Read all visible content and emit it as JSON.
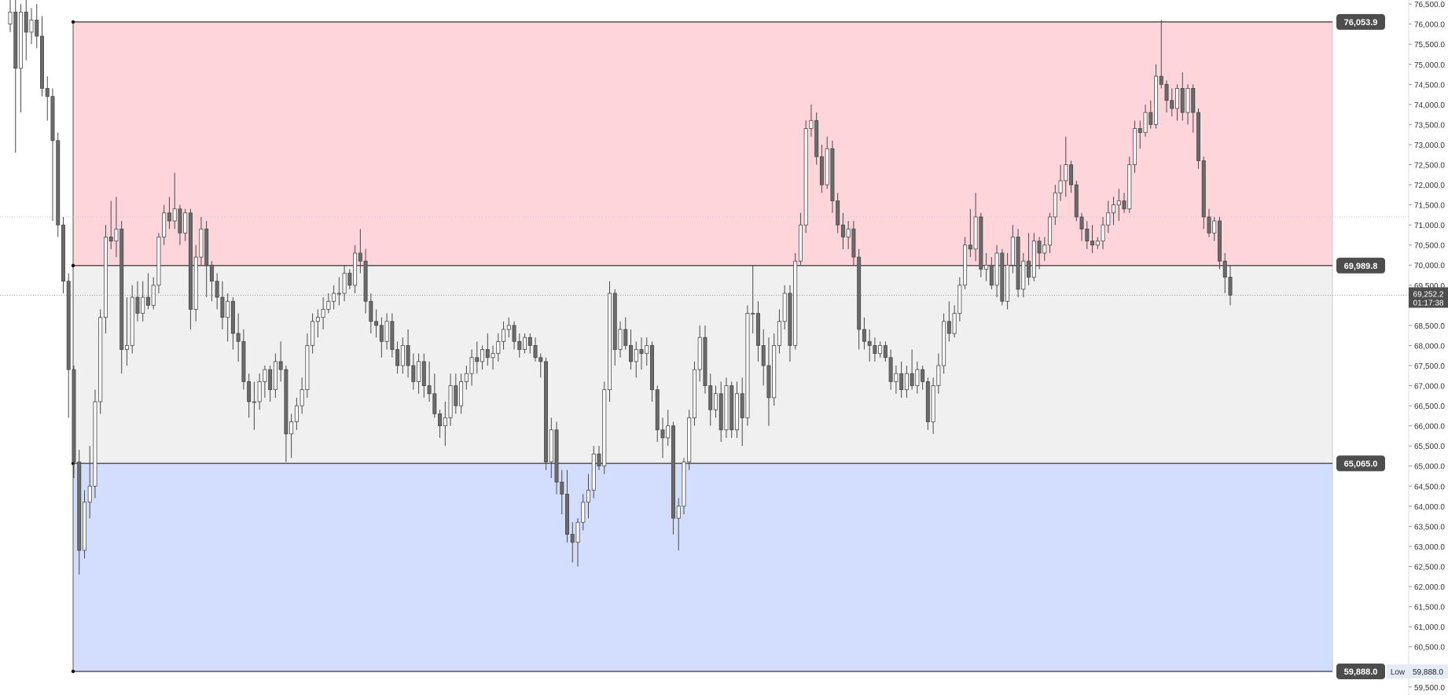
{
  "colors": {
    "zone_upper": "#fdd5db",
    "zone_middle": "#f0f0f0",
    "zone_lower": "#d3deff",
    "level_line": "#555555",
    "candle_up_fill": "#ffffff",
    "candle_down_fill": "#6b6b6b",
    "candle_stroke": "#4a4a4a",
    "tag_bg": "#4d4d4d",
    "tag_text": "#ffffff",
    "axis_text": "#333333",
    "dotted_line": "#9a9a9a"
  },
  "price_axis": {
    "tick_labels": [
      "76,500.0",
      "76,000.0",
      "75,500.0",
      "75,000.0",
      "74,500.0",
      "74,000.0",
      "73,500.0",
      "73,000.0",
      "72,500.0",
      "72,000.0",
      "71,500.0",
      "71,000.0",
      "70,500.0",
      "70,000.0",
      "69,500.0",
      "68,500.0",
      "68,000.0",
      "67,500.0",
      "67,000.0",
      "66,500.0",
      "66,000.0",
      "65,500.0",
      "65,000.0",
      "64,500.0",
      "64,000.0",
      "63,500.0",
      "63,000.0",
      "62,500.0",
      "62,000.0",
      "61,500.0",
      "61,000.0",
      "60,500.0",
      "60,000.0",
      "59,500.0"
    ],
    "current_price_label": "69,252.2",
    "countdown_label": "01:17:38",
    "low_label": "Low",
    "low_value_label": "59,888.0"
  },
  "chart_data": {
    "type": "candlestick",
    "ylim": [
      59300,
      76600
    ],
    "grid": false,
    "levels": [
      {
        "value": 76053.9,
        "label": "76,053.9"
      },
      {
        "value": 69989.8,
        "label": "69,989.8"
      },
      {
        "value": 65065.0,
        "label": "65,065.0"
      },
      {
        "value": 59888.0,
        "label": "59,888.0"
      }
    ],
    "current_price": 69252.2,
    "dotted_reference": 71200,
    "candles_ohlc": [
      [
        76000,
        76600,
        75800,
        76300
      ],
      [
        76300,
        76600,
        72800,
        74900
      ],
      [
        74900,
        76500,
        73800,
        76300
      ],
      [
        76300,
        76600,
        75100,
        75800
      ],
      [
        75800,
        76400,
        75500,
        76100
      ],
      [
        76100,
        76500,
        75400,
        75700
      ],
      [
        75700,
        76200,
        74200,
        74400
      ],
      [
        74400,
        74700,
        73600,
        74200
      ],
      [
        74200,
        74400,
        71100,
        73100
      ],
      [
        73100,
        73300,
        70700,
        71000
      ],
      [
        71000,
        71200,
        69300,
        69600
      ],
      [
        69600,
        69800,
        66200,
        67400
      ],
      [
        67400,
        67500,
        64700,
        65100
      ],
      [
        65100,
        65400,
        62300,
        62900
      ],
      [
        62900,
        64400,
        62700,
        64100
      ],
      [
        64100,
        65500,
        63700,
        64500
      ],
      [
        64500,
        66900,
        64200,
        66600
      ],
      [
        66600,
        68900,
        66300,
        68700
      ],
      [
        68700,
        71000,
        68300,
        70700
      ],
      [
        70700,
        71600,
        70400,
        70600
      ],
      [
        70600,
        71700,
        70200,
        70900
      ],
      [
        70900,
        71100,
        67300,
        67900
      ],
      [
        67900,
        69200,
        67500,
        68000
      ],
      [
        68000,
        69500,
        67800,
        69200
      ],
      [
        69200,
        69600,
        68600,
        68800
      ],
      [
        68800,
        69600,
        68600,
        69200
      ],
      [
        69200,
        69800,
        68900,
        69000
      ],
      [
        69000,
        69700,
        68900,
        69500
      ],
      [
        69500,
        70800,
        69300,
        70700
      ],
      [
        70700,
        71500,
        70500,
        71300
      ],
      [
        71300,
        71700,
        70900,
        71100
      ],
      [
        71100,
        72300,
        70900,
        71400
      ],
      [
        71400,
        71500,
        70500,
        70800
      ],
      [
        70800,
        71400,
        70600,
        71300
      ],
      [
        71300,
        71400,
        68400,
        68900
      ],
      [
        68900,
        70500,
        68600,
        70200
      ],
      [
        70200,
        71200,
        70000,
        70900
      ],
      [
        70900,
        71100,
        69200,
        70000
      ],
      [
        70000,
        70100,
        69100,
        69600
      ],
      [
        69600,
        69800,
        68900,
        69200
      ],
      [
        69200,
        69600,
        68400,
        68700
      ],
      [
        68700,
        69300,
        68100,
        69100
      ],
      [
        69100,
        69200,
        67900,
        68300
      ],
      [
        68300,
        68800,
        67600,
        68100
      ],
      [
        68100,
        68400,
        66900,
        67100
      ],
      [
        67100,
        67300,
        66200,
        66600
      ],
      [
        66600,
        67100,
        65900,
        66600
      ],
      [
        66600,
        67300,
        66400,
        67100
      ],
      [
        67100,
        67500,
        66700,
        67400
      ],
      [
        67400,
        67500,
        66600,
        66900
      ],
      [
        66900,
        67800,
        66700,
        67600
      ],
      [
        67600,
        68100,
        67100,
        67400
      ],
      [
        67400,
        67500,
        65100,
        65800
      ],
      [
        65800,
        66300,
        65200,
        66100
      ],
      [
        66100,
        66700,
        65900,
        66500
      ],
      [
        66500,
        67200,
        66300,
        66900
      ],
      [
        66900,
        68300,
        66700,
        68000
      ],
      [
        68000,
        68800,
        67800,
        68600
      ],
      [
        68600,
        68900,
        68200,
        68700
      ],
      [
        68700,
        69200,
        68400,
        68900
      ],
      [
        68900,
        69300,
        68800,
        69100
      ],
      [
        69100,
        69500,
        68900,
        69300
      ],
      [
        69300,
        69700,
        69000,
        69300
      ],
      [
        69300,
        70000,
        69100,
        69800
      ],
      [
        69800,
        69900,
        69400,
        69500
      ],
      [
        69500,
        70500,
        69300,
        70300
      ],
      [
        70300,
        70900,
        69800,
        70100
      ],
      [
        70100,
        70400,
        68800,
        69100
      ],
      [
        69100,
        69300,
        68300,
        68600
      ],
      [
        68600,
        68900,
        68200,
        68500
      ],
      [
        68500,
        68700,
        67700,
        68100
      ],
      [
        68100,
        68800,
        67900,
        68600
      ],
      [
        68600,
        68800,
        67700,
        67900
      ],
      [
        67900,
        68100,
        67300,
        67500
      ],
      [
        67500,
        68200,
        67300,
        68000
      ],
      [
        68000,
        68400,
        67200,
        67500
      ],
      [
        67500,
        67800,
        66900,
        67100
      ],
      [
        67100,
        67800,
        66800,
        67600
      ],
      [
        67600,
        67800,
        66700,
        67000
      ],
      [
        67000,
        67600,
        66600,
        66800
      ],
      [
        66800,
        67300,
        66200,
        66300
      ],
      [
        66300,
        66400,
        65700,
        66000
      ],
      [
        66000,
        66600,
        65500,
        66200
      ],
      [
        66200,
        67300,
        66000,
        67000
      ],
      [
        67000,
        67300,
        66300,
        66500
      ],
      [
        66500,
        67300,
        66300,
        67100
      ],
      [
        67100,
        67500,
        66900,
        67300
      ],
      [
        67300,
        67900,
        67000,
        67700
      ],
      [
        67700,
        68100,
        67300,
        67600
      ],
      [
        67600,
        68000,
        67400,
        67900
      ],
      [
        67900,
        68300,
        67500,
        67700
      ],
      [
        67700,
        68000,
        67400,
        67800
      ],
      [
        67800,
        68300,
        67600,
        68100
      ],
      [
        68100,
        68600,
        67900,
        68400
      ],
      [
        68400,
        68700,
        68200,
        68500
      ],
      [
        68500,
        68600,
        67900,
        68100
      ],
      [
        68100,
        68300,
        67700,
        67900
      ],
      [
        67900,
        68300,
        67800,
        68200
      ],
      [
        68200,
        68300,
        67800,
        68000
      ],
      [
        68000,
        68200,
        67600,
        67700
      ],
      [
        67700,
        67800,
        67200,
        67600
      ],
      [
        67600,
        67700,
        64900,
        65100
      ],
      [
        65100,
        66200,
        64700,
        65900
      ],
      [
        65900,
        66100,
        64300,
        64600
      ],
      [
        64600,
        64900,
        63800,
        64300
      ],
      [
        64300,
        64900,
        63100,
        63300
      ],
      [
        63300,
        63600,
        62600,
        63100
      ],
      [
        63100,
        63700,
        62500,
        63600
      ],
      [
        63600,
        64300,
        63400,
        64100
      ],
      [
        64100,
        64800,
        63700,
        64400
      ],
      [
        64400,
        65500,
        64200,
        65300
      ],
      [
        65300,
        65500,
        64900,
        65000
      ],
      [
        65000,
        67100,
        64800,
        66900
      ],
      [
        66900,
        69600,
        66600,
        69300
      ],
      [
        69300,
        69400,
        67500,
        67900
      ],
      [
        67900,
        68600,
        67700,
        68400
      ],
      [
        68400,
        68700,
        67900,
        68000
      ],
      [
        68000,
        68400,
        67400,
        67600
      ],
      [
        67600,
        68100,
        67200,
        67900
      ],
      [
        67900,
        68200,
        67400,
        67800
      ],
      [
        67800,
        68200,
        67500,
        68000
      ],
      [
        68000,
        68100,
        66600,
        66900
      ],
      [
        66900,
        67000,
        65600,
        65900
      ],
      [
        65900,
        66200,
        65200,
        65700
      ],
      [
        65700,
        66400,
        65500,
        66000
      ],
      [
        66000,
        66100,
        63300,
        63700
      ],
      [
        63700,
        64200,
        62900,
        64000
      ],
      [
        64000,
        65200,
        63800,
        65100
      ],
      [
        65100,
        66400,
        64900,
        66200
      ],
      [
        66200,
        67600,
        66000,
        67400
      ],
      [
        67400,
        68500,
        67100,
        68200
      ],
      [
        68200,
        68500,
        66800,
        67000
      ],
      [
        67000,
        67300,
        66000,
        66400
      ],
      [
        66400,
        67000,
        66200,
        66800
      ],
      [
        66800,
        67100,
        65600,
        65900
      ],
      [
        65900,
        67200,
        65700,
        67000
      ],
      [
        67000,
        67100,
        65700,
        65900
      ],
      [
        65900,
        67100,
        65700,
        66800
      ],
      [
        66800,
        67200,
        65500,
        66200
      ],
      [
        66200,
        69000,
        66000,
        68800
      ],
      [
        68800,
        70000,
        68300,
        68800
      ],
      [
        68800,
        69100,
        67600,
        68000
      ],
      [
        68000,
        68400,
        67000,
        67500
      ],
      [
        67500,
        68200,
        66000,
        66700
      ],
      [
        66700,
        68300,
        66500,
        68000
      ],
      [
        68000,
        68900,
        67800,
        68600
      ],
      [
        68600,
        69500,
        68400,
        69300
      ],
      [
        69300,
        69500,
        67600,
        68000
      ],
      [
        68000,
        70300,
        67900,
        70100
      ],
      [
        70100,
        71300,
        70000,
        71000
      ],
      [
        71000,
        73600,
        70800,
        73400
      ],
      [
        73400,
        74000,
        73200,
        73600
      ],
      [
        73600,
        73800,
        72500,
        72700
      ],
      [
        72700,
        73000,
        71800,
        72000
      ],
      [
        72000,
        73200,
        71900,
        72900
      ],
      [
        72900,
        73100,
        71300,
        71600
      ],
      [
        71600,
        71800,
        70800,
        71000
      ],
      [
        71000,
        71300,
        70400,
        70700
      ],
      [
        70700,
        71100,
        70400,
        70900
      ],
      [
        70900,
        71100,
        70000,
        70200
      ],
      [
        70200,
        70400,
        67900,
        68400
      ],
      [
        68400,
        68700,
        67900,
        68100
      ],
      [
        68100,
        68400,
        67600,
        68000
      ],
      [
        68000,
        68200,
        67600,
        67800
      ],
      [
        67800,
        68100,
        67700,
        68000
      ],
      [
        68000,
        68100,
        67600,
        67700
      ],
      [
        67700,
        67900,
        66900,
        67100
      ],
      [
        67100,
        67500,
        66800,
        67300
      ],
      [
        67300,
        67600,
        66700,
        66900
      ],
      [
        66900,
        67500,
        66700,
        67300
      ],
      [
        67300,
        67900,
        66900,
        67000
      ],
      [
        67000,
        67600,
        66800,
        67400
      ],
      [
        67400,
        67500,
        66900,
        67100
      ],
      [
        67100,
        67200,
        65900,
        66100
      ],
      [
        66100,
        67200,
        65800,
        67000
      ],
      [
        67000,
        67800,
        66800,
        67500
      ],
      [
        67500,
        68800,
        67300,
        68600
      ],
      [
        68600,
        69100,
        68100,
        68300
      ],
      [
        68300,
        69000,
        68200,
        68800
      ],
      [
        68800,
        69700,
        68600,
        69500
      ],
      [
        69500,
        70700,
        69400,
        70500
      ],
      [
        70500,
        71400,
        70200,
        70400
      ],
      [
        70400,
        71800,
        70100,
        71200
      ],
      [
        71200,
        71300,
        69700,
        69900
      ],
      [
        69900,
        70300,
        69600,
        70000
      ],
      [
        70000,
        70200,
        69400,
        69500
      ],
      [
        69500,
        70500,
        69200,
        70300
      ],
      [
        70300,
        70400,
        69000,
        69100
      ],
      [
        69100,
        70300,
        68900,
        70000
      ],
      [
        70000,
        71000,
        69800,
        70700
      ],
      [
        70700,
        70900,
        69200,
        69400
      ],
      [
        69400,
        70300,
        69200,
        70100
      ],
      [
        70100,
        70800,
        69500,
        69700
      ],
      [
        69700,
        70800,
        69600,
        70600
      ],
      [
        70600,
        70700,
        69900,
        70300
      ],
      [
        70300,
        70700,
        70100,
        70500
      ],
      [
        70500,
        71300,
        70300,
        71200
      ],
      [
        71200,
        72000,
        71000,
        71800
      ],
      [
        71800,
        72500,
        71600,
        72100
      ],
      [
        72100,
        73200,
        71700,
        72500
      ],
      [
        72500,
        72600,
        71800,
        72000
      ],
      [
        72000,
        72100,
        71100,
        71200
      ],
      [
        71200,
        71300,
        70600,
        70900
      ],
      [
        70900,
        71100,
        70400,
        70600
      ],
      [
        70600,
        71000,
        70300,
        70500
      ],
      [
        70500,
        70700,
        70400,
        70600
      ],
      [
        70600,
        71200,
        70400,
        71000
      ],
      [
        71000,
        71600,
        70800,
        71300
      ],
      [
        71300,
        71700,
        71000,
        71500
      ],
      [
        71500,
        71900,
        71100,
        71600
      ],
      [
        71600,
        71800,
        71300,
        71400
      ],
      [
        71400,
        72700,
        71300,
        72500
      ],
      [
        72500,
        73600,
        72300,
        73400
      ],
      [
        73400,
        73600,
        72900,
        73300
      ],
      [
        73300,
        74000,
        73200,
        73800
      ],
      [
        73800,
        74100,
        73400,
        73500
      ],
      [
        73500,
        75000,
        73400,
        74700
      ],
      [
        74700,
        76100,
        74400,
        74500
      ],
      [
        74500,
        74600,
        73800,
        74100
      ],
      [
        74100,
        74400,
        73700,
        73900
      ],
      [
        73900,
        74500,
        73600,
        74400
      ],
      [
        74400,
        74800,
        73600,
        73800
      ],
      [
        73800,
        74500,
        73500,
        74400
      ],
      [
        74400,
        74500,
        73300,
        73800
      ],
      [
        73800,
        73900,
        72400,
        72600
      ],
      [
        72600,
        72700,
        70900,
        71200
      ],
      [
        71200,
        71400,
        70700,
        70800
      ],
      [
        70800,
        71200,
        70600,
        71100
      ],
      [
        71100,
        71200,
        69900,
        70100
      ],
      [
        70100,
        70300,
        69300,
        69700
      ],
      [
        69700,
        70000,
        69000,
        69252.2
      ]
    ]
  }
}
